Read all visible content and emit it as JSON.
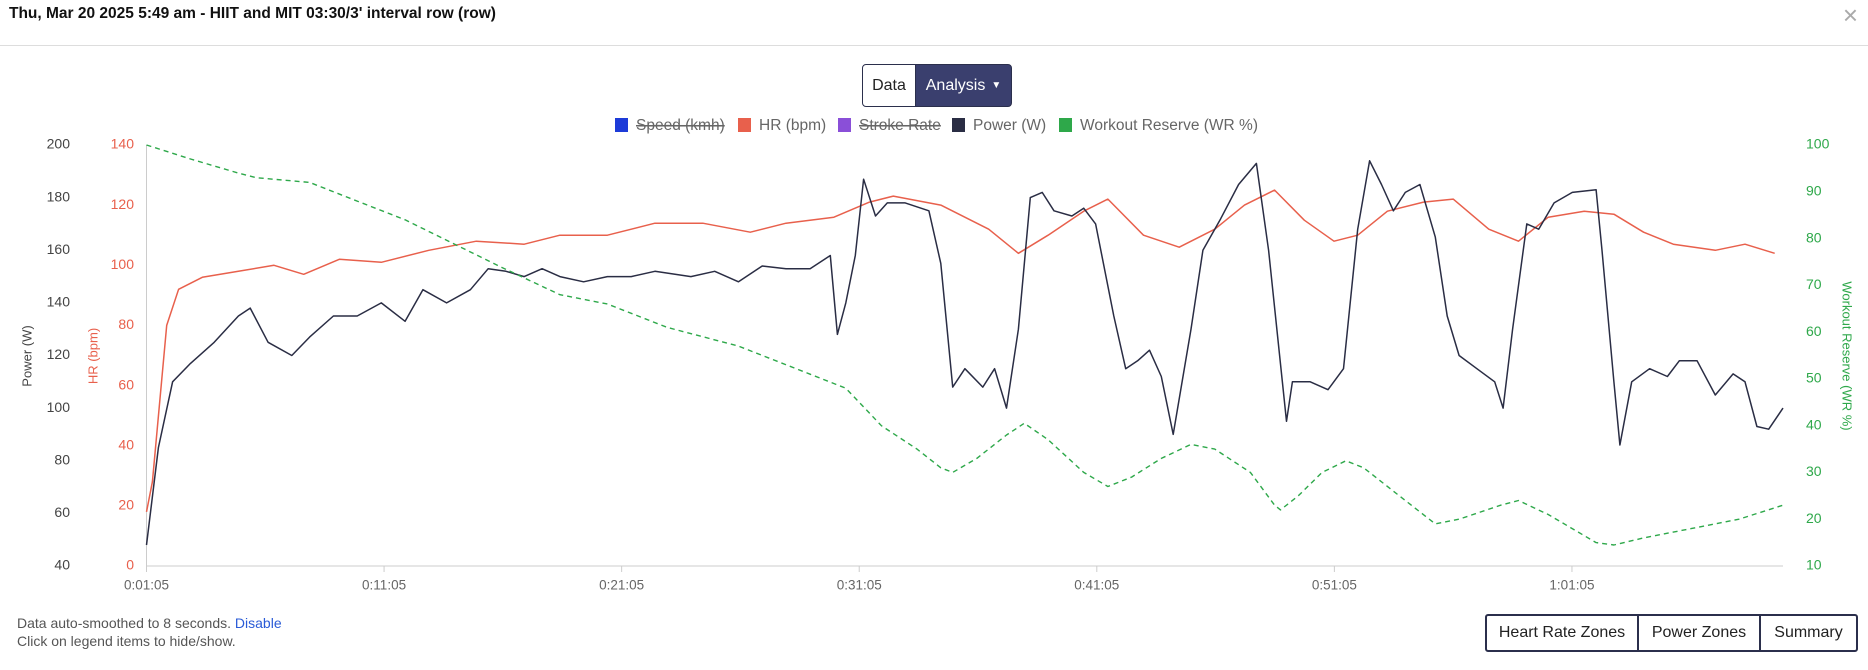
{
  "header": {
    "title": "Thu, Mar 20 2025 5:49 am - HIIT and MIT 03:30/3' interval row (row)",
    "close": "×"
  },
  "toggle": {
    "data": "Data",
    "analysis": "Analysis"
  },
  "chart_data": {
    "type": "line",
    "xlim": [
      65,
      4198
    ],
    "xticks": [
      {
        "value": 65,
        "label": "0:01:05"
      },
      {
        "value": 665,
        "label": "0:11:05"
      },
      {
        "value": 1265,
        "label": "0:21:05"
      },
      {
        "value": 1865,
        "label": "0:31:05"
      },
      {
        "value": 2465,
        "label": "0:41:05"
      },
      {
        "value": 3065,
        "label": "0:51:05"
      },
      {
        "value": 3665,
        "label": "1:01:05"
      }
    ],
    "ylabel": "Power (W)",
    "ylim": [
      40,
      200
    ],
    "yticks": [
      40,
      60,
      80,
      100,
      120,
      140,
      160,
      180,
      200
    ],
    "y3label": "HR (bpm)",
    "y3lim": [
      0,
      140
    ],
    "y3ticks": [
      0,
      20,
      40,
      60,
      80,
      100,
      120,
      140
    ],
    "y2label": "Workout Reserve (WR %)",
    "y2lim": [
      10,
      100
    ],
    "y2ticks": [
      10,
      20,
      30,
      40,
      50,
      60,
      70,
      80,
      90,
      100
    ],
    "series": [
      {
        "name": "Speed (kmh)",
        "color": "#1d3bd8",
        "hidden": true,
        "x": [],
        "values": []
      },
      {
        "name": "HR (bpm)",
        "color": "#e8604c",
        "axis": "y3",
        "x": [
          65,
          80,
          116,
          146,
          206,
          297,
          387,
          462,
          552,
          658,
          778,
          898,
          1019,
          1109,
          1229,
          1349,
          1470,
          1590,
          1680,
          1801,
          1891,
          1951,
          2071,
          2192,
          2267,
          2342,
          2432,
          2493,
          2583,
          2673,
          2763,
          2838,
          2914,
          2989,
          3064,
          3124,
          3199,
          3290,
          3365,
          3455,
          3530,
          3605,
          3696,
          3771,
          3846,
          3921,
          4027,
          4102,
          4177
        ],
        "values": [
          18,
          28,
          80,
          92,
          96,
          98,
          100,
          97,
          102,
          101,
          105,
          108,
          107,
          110,
          110,
          114,
          114,
          111,
          114,
          116,
          121,
          123,
          120,
          112,
          104,
          110,
          118,
          122,
          110,
          106,
          112,
          120,
          125,
          115,
          108,
          110,
          118,
          121,
          122,
          112,
          108,
          116,
          118,
          117,
          111,
          107,
          105,
          107,
          104
        ]
      },
      {
        "name": "Stroke Rate",
        "color": "#8a4fd8",
        "hidden": true,
        "x": [],
        "values": []
      },
      {
        "name": "Power (W)",
        "color": "#2a2d44",
        "x": [
          65,
          95,
          131,
          176,
          236,
          297,
          327,
          372,
          432,
          477,
          537,
          597,
          658,
          718,
          763,
          823,
          883,
          928,
          973,
          1019,
          1064,
          1109,
          1169,
          1229,
          1289,
          1349,
          1440,
          1500,
          1560,
          1620,
          1680,
          1741,
          1792,
          1810,
          1831,
          1855,
          1876,
          1906,
          1936,
          1981,
          2041,
          2071,
          2101,
          2132,
          2177,
          2207,
          2237,
          2267,
          2297,
          2327,
          2357,
          2402,
          2432,
          2462,
          2508,
          2538,
          2568,
          2598,
          2628,
          2658,
          2703,
          2733,
          2778,
          2823,
          2868,
          2899,
          2944,
          2959,
          3004,
          3049,
          3088,
          3124,
          3154,
          3184,
          3214,
          3244,
          3281,
          3320,
          3350,
          3380,
          3425,
          3470,
          3491,
          3515,
          3551,
          3581,
          3620,
          3666,
          3726,
          3741,
          3771,
          3786,
          3816,
          3861,
          3906,
          3936,
          3981,
          4027,
          4072,
          4102,
          4132,
          4162,
          4198
        ],
        "values": [
          48,
          85,
          110,
          117,
          125,
          135,
          138,
          125,
          120,
          127,
          135,
          135,
          140,
          133,
          145,
          140,
          145,
          153,
          152,
          150,
          153,
          150,
          148,
          150,
          150,
          152,
          150,
          152,
          148,
          154,
          153,
          153,
          158,
          128,
          140,
          158,
          187,
          173,
          178,
          178,
          175,
          155,
          108,
          115,
          108,
          115,
          100,
          130,
          180,
          182,
          175,
          173,
          176,
          170,
          135,
          115,
          118,
          122,
          112,
          90,
          130,
          160,
          172,
          185,
          193,
          160,
          95,
          110,
          110,
          107,
          115,
          168,
          194,
          185,
          175,
          182,
          185,
          165,
          135,
          120,
          115,
          110,
          100,
          130,
          170,
          168,
          178,
          182,
          183,
          160,
          110,
          86,
          110,
          115,
          112,
          118,
          118,
          105,
          113,
          110,
          93,
          92,
          100
        ]
      },
      {
        "name": "Workout Reserve (WR %)",
        "color": "#2ea84a",
        "axis": "y2",
        "dashed": true,
        "x": [
          65,
          176,
          297,
          342,
          477,
          597,
          718,
          838,
          958,
          1109,
          1229,
          1380,
          1560,
          1741,
          1831,
          1921,
          2011,
          2071,
          2101,
          2162,
          2237,
          2282,
          2342,
          2432,
          2493,
          2553,
          2628,
          2703,
          2763,
          2853,
          2914,
          2929,
          2974,
          3034,
          3094,
          3139,
          3229,
          3320,
          3380,
          3485,
          3530,
          3605,
          3726,
          3771,
          3846,
          3966,
          4087,
          4198
        ],
        "values": [
          100,
          97,
          94,
          93,
          92,
          88,
          84,
          79,
          74,
          68,
          66,
          61,
          57,
          51,
          48,
          40,
          35,
          31,
          30,
          33,
          38,
          40.5,
          37,
          30,
          27,
          29,
          33,
          36,
          35,
          30,
          23,
          22,
          25,
          30,
          32.5,
          31,
          25,
          19,
          20,
          23,
          24,
          21,
          15,
          14.5,
          16,
          18,
          20,
          23
        ]
      }
    ]
  },
  "footer": {
    "note": "Data auto-smoothed to 8 seconds.",
    "link": "Disable",
    "hint": "Click on legend items to hide/show."
  },
  "buttons": [
    "Heart Rate Zones",
    "Power Zones",
    "Summary"
  ]
}
